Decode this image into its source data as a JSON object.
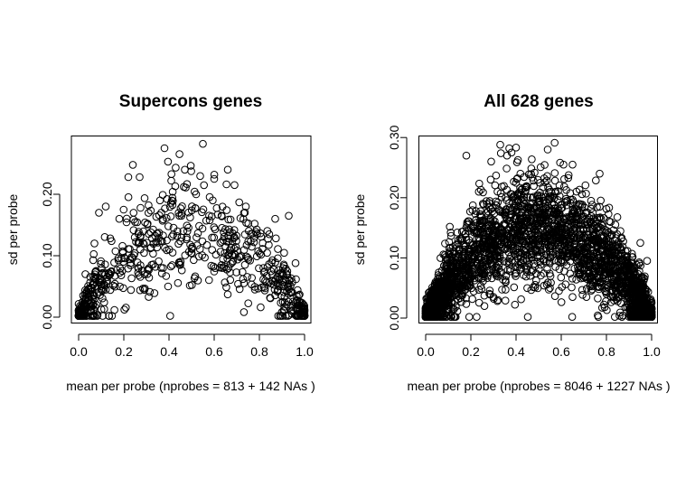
{
  "chart_data": [
    {
      "type": "scatter",
      "title": "Supercons genes",
      "xlabel": "mean per probe (nprobes = 813 + 142 NAs )",
      "ylabel": "sd per probe",
      "xlim": [
        0,
        1
      ],
      "ylim": [
        0,
        0.28
      ],
      "xticks": [
        "0.0",
        "0.2",
        "0.4",
        "0.6",
        "0.8",
        "1.0"
      ],
      "yticks": [
        "0.00",
        "0.10",
        "0.20"
      ],
      "grid": false,
      "n_points": 813,
      "envelope": {
        "center": 0.5,
        "peak_sd": 0.14,
        "spread": 0.045
      },
      "points": [
        {
          "x": 0.38,
          "y": 0.275
        },
        {
          "x": 0.55,
          "y": 0.282
        },
        {
          "x": 0.47,
          "y": 0.24
        },
        {
          "x": 0.66,
          "y": 0.24
        },
        {
          "x": 0.24,
          "y": 0.248
        },
        {
          "x": 0.22,
          "y": 0.228
        },
        {
          "x": 0.27,
          "y": 0.228
        },
        {
          "x": 0.41,
          "y": 0.222
        },
        {
          "x": 0.6,
          "y": 0.225
        },
        {
          "x": 0.69,
          "y": 0.215
        },
        {
          "x": 0.31,
          "y": 0.033
        },
        {
          "x": 0.66,
          "y": 0.037
        },
        {
          "x": 0.45,
          "y": 0.085
        },
        {
          "x": 0.78,
          "y": 0.045
        },
        {
          "x": 0.95,
          "y": 0.012
        },
        {
          "x": 0.98,
          "y": 0.025
        },
        {
          "x": 0.93,
          "y": 0.165
        },
        {
          "x": 0.96,
          "y": 0.088
        },
        {
          "x": 0.12,
          "y": 0.18
        },
        {
          "x": 0.09,
          "y": 0.17
        },
        {
          "x": 0.07,
          "y": 0.12
        },
        {
          "x": 0.03,
          "y": 0.07
        },
        {
          "x": 0.02,
          "y": 0.005
        },
        {
          "x": 0.05,
          "y": 0.01
        },
        {
          "x": 0.14,
          "y": 0.07
        },
        {
          "x": 0.18,
          "y": 0.16
        },
        {
          "x": 0.36,
          "y": 0.19
        },
        {
          "x": 0.52,
          "y": 0.2
        },
        {
          "x": 0.74,
          "y": 0.18
        },
        {
          "x": 0.87,
          "y": 0.16
        },
        {
          "x": 0.89,
          "y": 0.07
        },
        {
          "x": 0.91,
          "y": 0.05
        }
      ]
    },
    {
      "type": "scatter",
      "title": "All 628 genes",
      "xlabel": "mean per probe (nprobes = 8046 + 1227 NAs )",
      "ylabel": "sd per probe",
      "xlim": [
        0,
        1
      ],
      "ylim": [
        0,
        0.3
      ],
      "xticks": [
        "0.0",
        "0.2",
        "0.4",
        "0.6",
        "0.8",
        "1.0"
      ],
      "yticks": [
        "0.00",
        "0.10",
        "0.20",
        "0.30"
      ],
      "grid": false,
      "n_points": 8046,
      "envelope": {
        "center": 0.5,
        "peak_sd": 0.15,
        "spread": 0.045
      },
      "points": [
        {
          "x": 0.33,
          "y": 0.288
        },
        {
          "x": 0.37,
          "y": 0.282
        },
        {
          "x": 0.54,
          "y": 0.28
        },
        {
          "x": 0.38,
          "y": 0.275
        },
        {
          "x": 0.36,
          "y": 0.27
        },
        {
          "x": 0.18,
          "y": 0.27
        },
        {
          "x": 0.61,
          "y": 0.255
        },
        {
          "x": 0.65,
          "y": 0.255
        },
        {
          "x": 0.77,
          "y": 0.24
        },
        {
          "x": 0.29,
          "y": 0.26
        },
        {
          "x": 0.26,
          "y": 0.02
        },
        {
          "x": 0.3,
          "y": 0.035
        },
        {
          "x": 0.32,
          "y": 0.03
        },
        {
          "x": 0.55,
          "y": 0.05
        },
        {
          "x": 0.59,
          "y": 0.045
        },
        {
          "x": 0.65,
          "y": 0.035
        },
        {
          "x": 0.8,
          "y": 0.04
        },
        {
          "x": 0.83,
          "y": 0.06
        },
        {
          "x": 0.97,
          "y": 0.005
        },
        {
          "x": 0.99,
          "y": 0.015
        },
        {
          "x": 0.98,
          "y": 0.095
        },
        {
          "x": 0.95,
          "y": 0.125
        },
        {
          "x": 0.02,
          "y": 0.003
        },
        {
          "x": 0.05,
          "y": 0.02
        },
        {
          "x": 0.48,
          "y": 0.09
        },
        {
          "x": 0.44,
          "y": 0.105
        }
      ]
    }
  ]
}
